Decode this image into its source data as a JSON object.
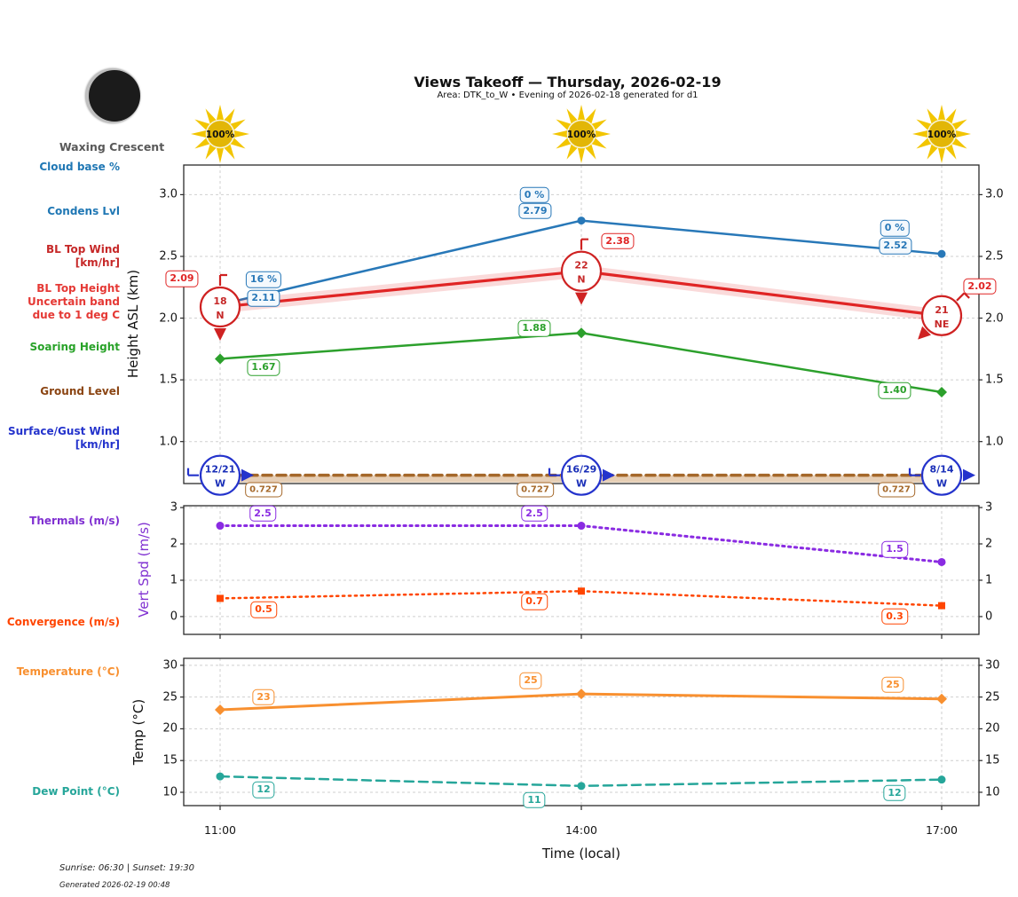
{
  "title": "Views Takeoff — Thursday, 2026-02-19",
  "subtitle": "Area: DTK_to_W • Evening of 2026-02-18 generated for d1",
  "moon": {
    "phase_label": "Waxing Crescent"
  },
  "suns": [
    {
      "label": "100%"
    },
    {
      "label": "100%"
    },
    {
      "label": "100%"
    }
  ],
  "xlabel": "Time (local)",
  "times": [
    "11:00",
    "14:00",
    "17:00"
  ],
  "footer": {
    "sun_times": "Sunrise: 06:30 | Sunset: 19:30",
    "generated": "Generated 2026-02-19 00:48"
  },
  "legend": [
    {
      "id": "cloud-base",
      "label": "Cloud base %",
      "color": "#1f77b4"
    },
    {
      "id": "condens-lvl",
      "label": "Condens Lvl",
      "color": "#1f77b4"
    },
    {
      "id": "bl-top-wind",
      "label": "BL Top Wind\n[km/hr]",
      "color": "#c62828"
    },
    {
      "id": "bl-top-height",
      "label": "BL Top Height\nUncertain band\ndue to 1 deg C",
      "color": "#e53935"
    },
    {
      "id": "soaring-height",
      "label": "Soaring Height",
      "color": "#28a228"
    },
    {
      "id": "ground-level",
      "label": "Ground Level",
      "color": "#8b4513"
    },
    {
      "id": "surface-wind",
      "label": "Surface/Gust Wind\n[km/hr]",
      "color": "#2433cc"
    },
    {
      "id": "thermals",
      "label": "Thermals (m/s)",
      "color": "#7f2fd1"
    },
    {
      "id": "convergence",
      "label": "Convergence (m/s)",
      "color": "#ff4500"
    },
    {
      "id": "temperature",
      "label": "Temperature (°C)",
      "color": "#f89030"
    },
    {
      "id": "dew-point",
      "label": "Dew Point (°C)",
      "color": "#26a69a"
    }
  ],
  "chart_data": [
    {
      "type": "line",
      "panel": "height",
      "ylabel": "Height ASL (km)",
      "x": [
        "11:00",
        "14:00",
        "17:00"
      ],
      "yticks": [
        "3.0",
        "2.5",
        "2.0",
        "1.5",
        "1.0"
      ],
      "ylim": [
        0.66,
        3.24
      ],
      "grid": true,
      "series": [
        {
          "id": "condens",
          "name": "Condens Lvl",
          "color": "#2878b8",
          "line": "solid",
          "marker": "circle",
          "values": [
            2.11,
            2.79,
            2.52
          ],
          "point_labels": [
            "2.11",
            "2.79",
            "2.52"
          ]
        },
        {
          "id": "cloudpct",
          "name": "Cloud base %",
          "color": "#2878b8",
          "line": "none",
          "marker": "none",
          "values": [
            2.11,
            2.79,
            2.52
          ],
          "point_labels": [
            "16 %",
            "0 %",
            "0 %"
          ]
        },
        {
          "id": "bltop",
          "name": "BL Top Height (uncertain band due to 1 deg C)",
          "color": "#e02424",
          "line": "solid",
          "marker": "none",
          "values": [
            2.09,
            2.38,
            2.02
          ],
          "point_labels": [
            "2.09",
            "2.38",
            "2.02"
          ],
          "band": 0.05
        },
        {
          "id": "soaring",
          "name": "Soaring Height",
          "color": "#2ca02c",
          "line": "solid",
          "marker": "diamond",
          "values": [
            1.67,
            1.88,
            1.4
          ],
          "point_labels": [
            "1.67",
            "1.88",
            "1.40"
          ]
        },
        {
          "id": "ground",
          "name": "Ground Level",
          "color": "#a5682a",
          "line": "dashed",
          "marker": "none",
          "values": [
            0.727,
            0.727,
            0.727
          ],
          "point_labels": [
            "0.727",
            "0.727",
            "0.727"
          ],
          "band_below": true
        }
      ],
      "bl_top_wind": [
        {
          "speed": "18",
          "dir": "N"
        },
        {
          "speed": "22",
          "dir": "N"
        },
        {
          "speed": "21",
          "dir": "NE"
        }
      ],
      "surface_wind": [
        {
          "speed": "12/21",
          "dir": "W"
        },
        {
          "speed": "16/29",
          "dir": "W"
        },
        {
          "speed": "8/14",
          "dir": "W"
        }
      ]
    },
    {
      "type": "line",
      "panel": "vertspd",
      "ylabel": "Vert Spd (m/s)",
      "ylabel_color": "#7f2fd1",
      "x": [
        "11:00",
        "14:00",
        "17:00"
      ],
      "yticks": [
        "3",
        "2",
        "1",
        "0"
      ],
      "ylim": [
        -0.49,
        3.05
      ],
      "grid": true,
      "series": [
        {
          "id": "thermals",
          "name": "Thermals (m/s)",
          "color": "#8a2be2",
          "line": "dotted",
          "marker": "circle",
          "values": [
            2.5,
            2.5,
            1.5
          ],
          "point_labels": [
            "2.5",
            "2.5",
            "1.5"
          ]
        },
        {
          "id": "convergence",
          "name": "Convergence (m/s)",
          "color": "#ff4500",
          "line": "dotted",
          "marker": "square",
          "values": [
            0.5,
            0.7,
            0.3
          ],
          "point_labels": [
            "0.5",
            "0.7",
            "0.3"
          ]
        }
      ]
    },
    {
      "type": "line",
      "panel": "temp",
      "ylabel": "Temp (°C)",
      "x": [
        "11:00",
        "14:00",
        "17:00"
      ],
      "yticks": [
        "30",
        "25",
        "20",
        "15",
        "10"
      ],
      "ylim": [
        7.9,
        31.1
      ],
      "grid": true,
      "series": [
        {
          "id": "temperature",
          "name": "Temperature (°C)",
          "color": "#f89030",
          "line": "solid",
          "marker": "diamond",
          "values": [
            23,
            25.5,
            24.7
          ],
          "point_labels": [
            "23",
            "25",
            "25"
          ]
        },
        {
          "id": "dewpoint",
          "name": "Dew Point (°C)",
          "color": "#26a69a",
          "line": "dashed",
          "marker": "circle",
          "values": [
            12.5,
            11,
            12
          ],
          "point_labels": [
            "12",
            "11",
            "12"
          ]
        }
      ]
    }
  ]
}
